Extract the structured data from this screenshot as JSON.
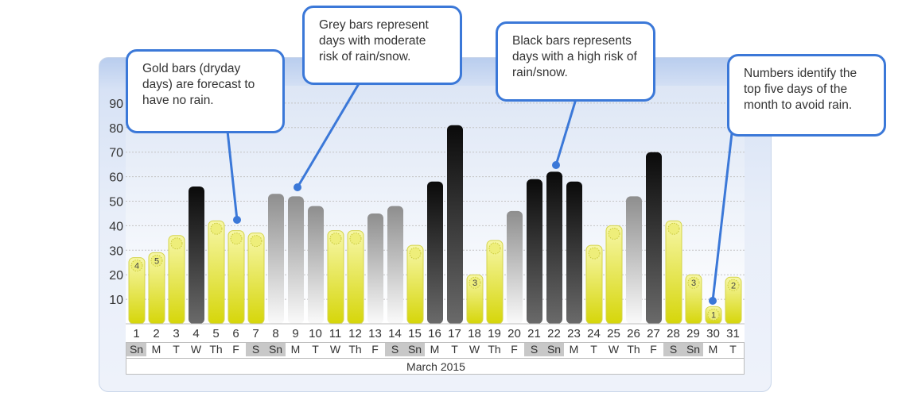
{
  "colors": {
    "gold": "#e2e21a",
    "grey": "#9c9c9c",
    "black": "#151515",
    "callout_border": "#3b78d8",
    "weekend_cell": "#c8c8c8"
  },
  "callouts": [
    {
      "id": "gold",
      "text": "Gold bars (dryday days) are forecast to have no rain."
    },
    {
      "id": "grey",
      "text": "Grey bars represent days with moderate risk of rain/snow."
    },
    {
      "id": "black",
      "text": "Black bars represents days with a high risk of rain/snow."
    },
    {
      "id": "numbers",
      "text": "Numbers identify the top five days of the month to avoid rain."
    }
  ],
  "chart_data": {
    "type": "bar",
    "title": "",
    "xlabel": "March 2015",
    "ylabel": "",
    "ylim": [
      0,
      100
    ],
    "y_ticks": [
      10,
      20,
      30,
      40,
      50,
      60,
      70,
      80,
      90
    ],
    "grid": true,
    "categories": [
      "1",
      "2",
      "3",
      "4",
      "5",
      "6",
      "7",
      "8",
      "9",
      "10",
      "11",
      "12",
      "13",
      "14",
      "15",
      "16",
      "17",
      "18",
      "19",
      "20",
      "21",
      "22",
      "23",
      "24",
      "25",
      "26",
      "27",
      "28",
      "29",
      "30",
      "31"
    ],
    "weekdays": [
      "Sn",
      "M",
      "T",
      "W",
      "Th",
      "F",
      "S",
      "Sn",
      "M",
      "T",
      "W",
      "Th",
      "F",
      "S",
      "Sn",
      "M",
      "T",
      "W",
      "Th",
      "F",
      "S",
      "Sn",
      "M",
      "T",
      "W",
      "Th",
      "F",
      "S",
      "Sn",
      "M",
      "T"
    ],
    "values": [
      27,
      29,
      36,
      56,
      42,
      38,
      37,
      53,
      52,
      48,
      38,
      38,
      45,
      48,
      32,
      58,
      81,
      20,
      34,
      46,
      59,
      62,
      58,
      32,
      40,
      52,
      70,
      42,
      20,
      7,
      19
    ],
    "risk": [
      "gold",
      "gold",
      "gold",
      "black",
      "gold",
      "gold",
      "gold",
      "grey",
      "grey",
      "grey",
      "gold",
      "gold",
      "grey",
      "grey",
      "gold",
      "black",
      "black",
      "gold",
      "gold",
      "grey",
      "black",
      "black",
      "black",
      "gold",
      "gold",
      "grey",
      "black",
      "gold",
      "gold",
      "gold",
      "gold"
    ],
    "rank_labels": {
      "1": "4",
      "2": "5",
      "18": "3",
      "29": "3",
      "30": "1",
      "31": "2"
    }
  }
}
